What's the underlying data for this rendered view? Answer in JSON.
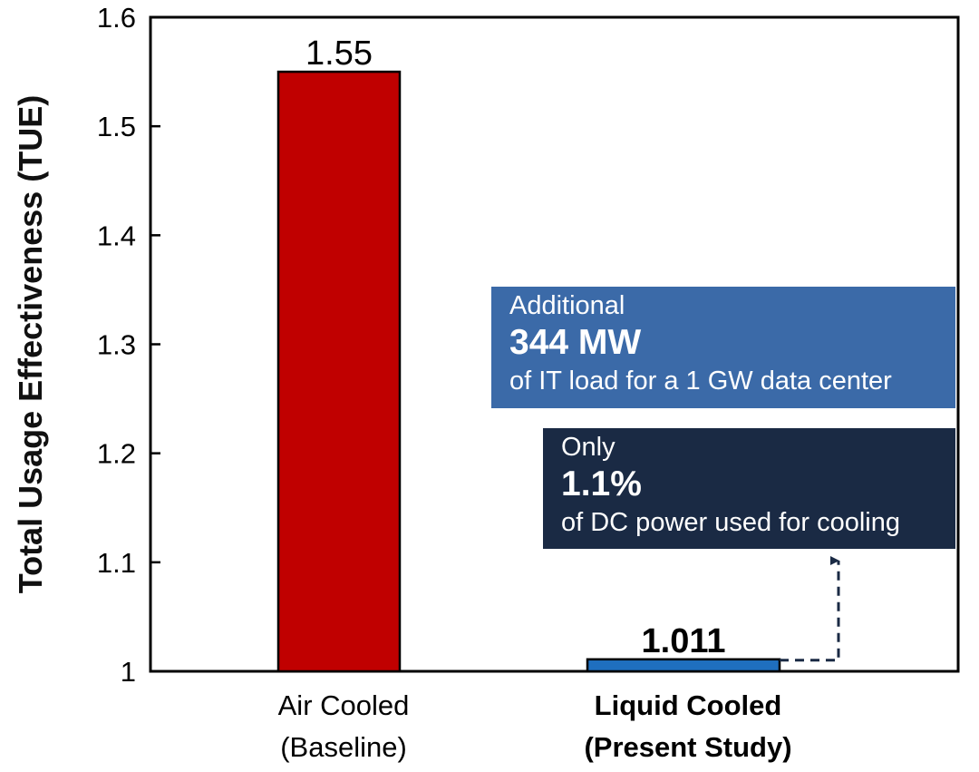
{
  "chart_data": {
    "type": "bar",
    "categories": [
      {
        "line1": "Air Cooled",
        "line2": "(Baseline)",
        "bold": false
      },
      {
        "line1": "Liquid Cooled",
        "line2": "(Present Study)",
        "bold": true
      }
    ],
    "values": [
      1.55,
      1.011
    ],
    "data_labels": [
      "1.55",
      "1.011"
    ],
    "colors": [
      "#c00000",
      "#1f6fbf"
    ],
    "ylabel": "Total Usage Effectiveness (TUE)",
    "ylim": [
      1,
      1.6
    ],
    "yticks": [
      1,
      1.1,
      1.2,
      1.3,
      1.4,
      1.5,
      1.6
    ],
    "ytick_labels": [
      "1",
      "1.1",
      "1.2",
      "1.3",
      "1.4",
      "1.5",
      "1.6"
    ],
    "grid": false,
    "annotations": [
      {
        "line1": "Additional",
        "line2": "344 MW",
        "line3": "of IT load for a 1 GW data center",
        "color": "#3b6aa8"
      },
      {
        "line1": "Only",
        "line2": "1.1%",
        "line3": "of DC power used for cooling",
        "color": "#1a2a44"
      }
    ]
  }
}
